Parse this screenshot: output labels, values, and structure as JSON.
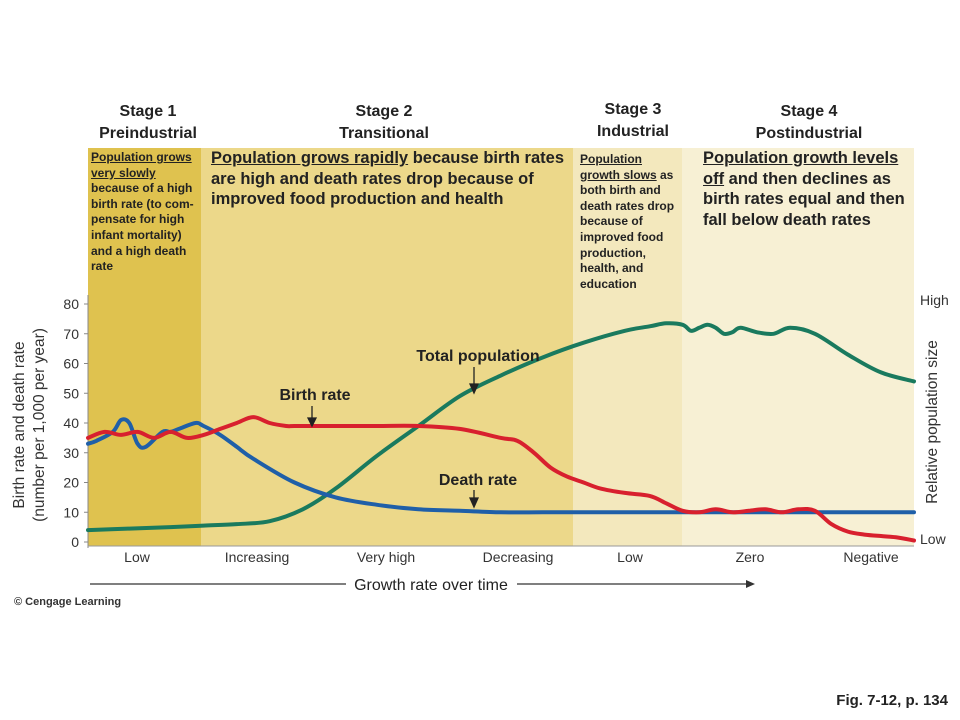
{
  "stages": [
    {
      "number": "Stage 1",
      "name": "Preindustrial",
      "desc_underlined": "Population grows very slowly",
      "desc_rest": " because of a high birth rate (to com-pensate for high infant mortality) and a high death rate"
    },
    {
      "number": "Stage 2",
      "name": "Transitional",
      "desc_underlined": "Population grows rapidly",
      "desc_rest": " because birth rates are high and death rates drop because of improved food production and health"
    },
    {
      "number": "Stage 3",
      "name": "Industrial",
      "desc_underlined": "Population growth slows",
      "desc_rest": " as both birth and death rates drop because of improved food production, health, and education"
    },
    {
      "number": "Stage 4",
      "name": "Postindustrial",
      "desc_underlined": "Population growth levels off",
      "desc_rest": " and then declines as birth rates equal and then fall below death rates"
    }
  ],
  "colors": {
    "stage1_bg": "#dfc24f",
    "stage2_bg": "#ecd88a",
    "stage3_bg": "#f3e8bd",
    "stage4_bg": "#f7f0d4",
    "birth_rate": "#d8202e",
    "death_rate": "#1f5fa8",
    "total_population": "#1a7a5e"
  },
  "chart_data": {
    "type": "line",
    "ylabel_line1": "Birth rate and death rate",
    "ylabel_line2": "(number per 1,000 per year)",
    "right_ylabel": "Relative population size",
    "right_tick_high": "High",
    "right_tick_low": "Low",
    "yticks": [
      "0",
      "10",
      "20",
      "30",
      "40",
      "50",
      "60",
      "70",
      "80"
    ],
    "ylim": [
      0,
      80
    ],
    "xlabel": "Growth rate over time",
    "xticks": [
      "Low",
      "Increasing",
      "Very high",
      "Decreasing",
      "Low",
      "Zero",
      "Negative"
    ],
    "annotations": {
      "birth_rate": "Birth rate",
      "death_rate": "Death rate",
      "total_population": "Total population"
    },
    "series": [
      {
        "name": "Birth rate",
        "color": "#d8202e",
        "x": [
          0,
          2,
          4,
          6,
          8,
          10,
          12,
          14,
          16,
          18,
          20,
          22,
          24,
          25,
          28,
          30,
          35,
          40,
          45,
          50,
          52,
          54,
          56,
          58,
          60,
          62,
          65,
          68,
          70,
          72,
          74,
          76,
          78,
          80,
          82,
          84,
          86,
          88,
          90,
          92,
          94,
          96,
          98,
          100
        ],
        "y": [
          35,
          37,
          36,
          37,
          35,
          37,
          35,
          36,
          38,
          40,
          42,
          40,
          39,
          39,
          39,
          39,
          39,
          39,
          38,
          35,
          34,
          30,
          25,
          22,
          20,
          18,
          16.5,
          15.5,
          13,
          10.5,
          10,
          11,
          10,
          10.5,
          11,
          10,
          11,
          10.5,
          6,
          3.5,
          2.5,
          2,
          1.5,
          0.5
        ]
      },
      {
        "name": "Death rate",
        "color": "#1f5fa8",
        "x": [
          0,
          1,
          3,
          4,
          5,
          6,
          7,
          9,
          10,
          11,
          13,
          14,
          16,
          18,
          20,
          25,
          30,
          35,
          40,
          45,
          50,
          55,
          60,
          65,
          70,
          75,
          80,
          85,
          90,
          95,
          100
        ],
        "y": [
          33,
          34,
          37,
          41,
          40,
          33,
          32,
          37,
          37,
          38,
          40,
          39,
          36,
          32,
          28,
          20,
          15,
          12.5,
          11,
          10.5,
          10,
          10,
          10,
          10,
          10,
          10,
          10,
          10,
          10,
          10,
          10
        ]
      },
      {
        "name": "Total population",
        "color": "#1a7a5e",
        "x": [
          0,
          5,
          10,
          14,
          18,
          22,
          26,
          30,
          35,
          40,
          45,
          50,
          55,
          60,
          65,
          68,
          70,
          72,
          73,
          74,
          75,
          76,
          77,
          78,
          79,
          81,
          83,
          85,
          88,
          92,
          96,
          100
        ],
        "y": [
          4,
          4.5,
          5,
          5.5,
          6,
          7,
          11,
          18,
          29,
          39,
          49,
          56,
          62,
          67,
          71,
          72.5,
          73.5,
          73,
          71,
          72,
          73,
          72,
          70,
          70.5,
          72,
          70.5,
          70,
          72,
          70,
          63,
          57,
          54
        ]
      }
    ]
  },
  "copyright": "© Cengage Learning",
  "figref": "Fig. 7-12, p. 134"
}
